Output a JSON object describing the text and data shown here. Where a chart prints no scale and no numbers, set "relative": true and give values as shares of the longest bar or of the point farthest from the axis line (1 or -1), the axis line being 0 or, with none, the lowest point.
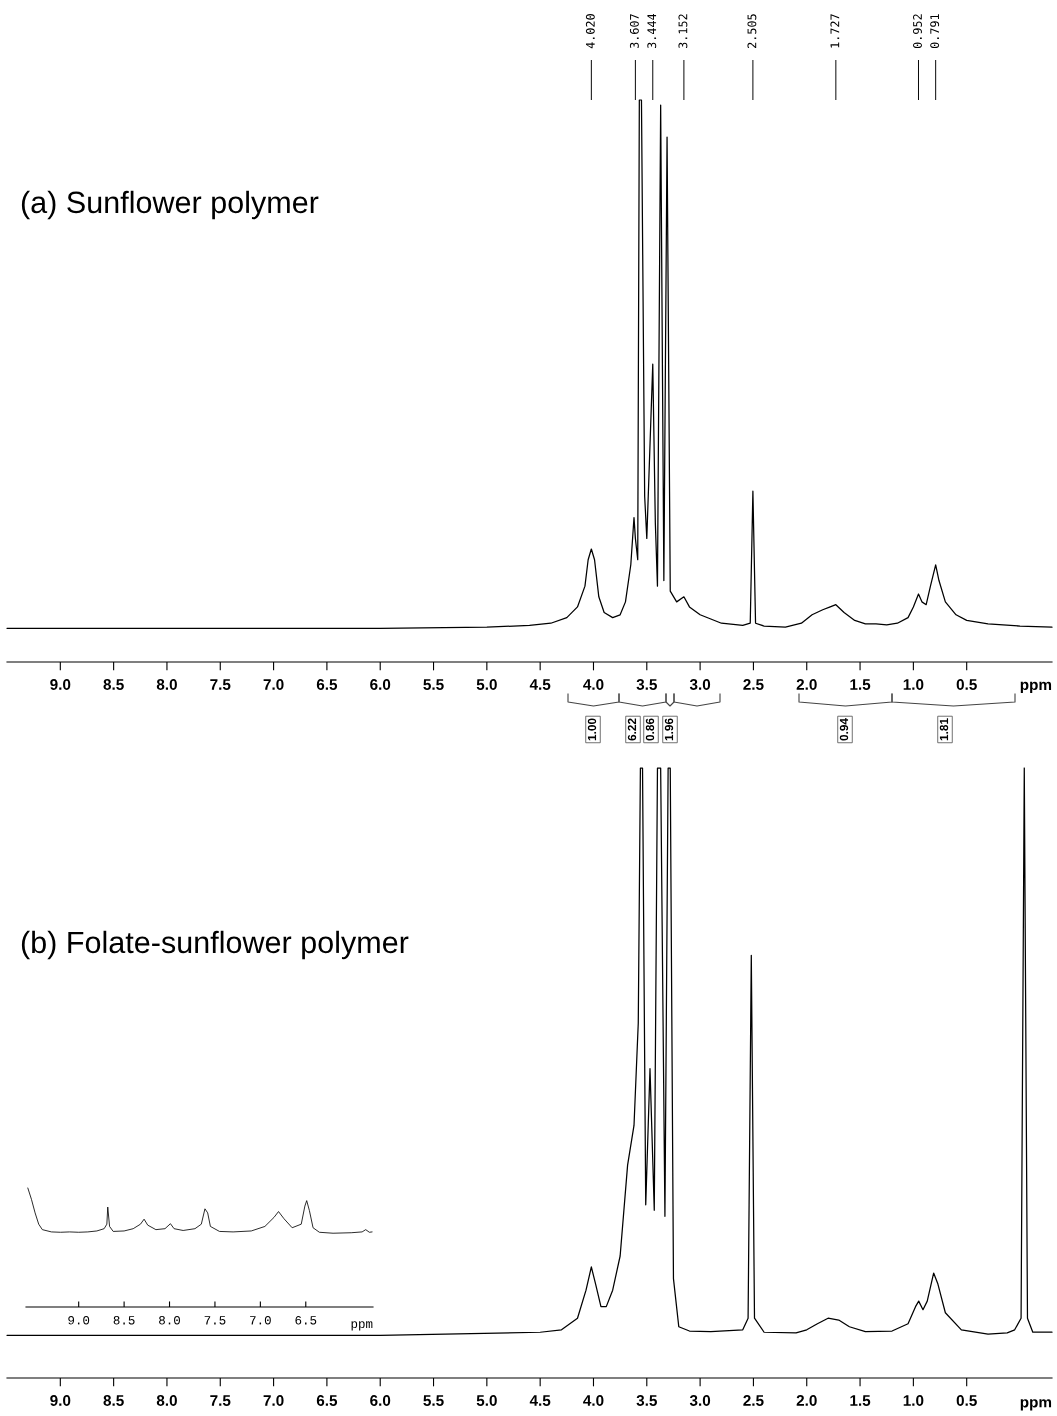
{
  "chart_data": [
    {
      "type": "line",
      "title": "(a) Sunflower polymer",
      "xlabel": "ppm",
      "relative": true,
      "tick_labels": "x",
      "xlim": [
        9.5,
        -0.3
      ],
      "xticks": [
        {
          "value": 9,
          "label": "9.0"
        },
        8.5,
        {
          "value": 8,
          "label": "8.0"
        },
        7.5,
        {
          "value": 7,
          "label": "7.0"
        },
        6.5,
        {
          "value": 6,
          "label": "6.0"
        },
        5.5,
        {
          "value": 5,
          "label": "5.0"
        },
        4.5,
        {
          "value": 4,
          "label": "4.0"
        },
        3.5,
        {
          "value": 3,
          "label": "3.0"
        },
        2.5,
        {
          "value": 2,
          "label": "2.0"
        },
        1.5,
        {
          "value": 1,
          "label": "1.0"
        },
        0.5
      ],
      "x2lim": [
        9.5,
        -0.3
      ],
      "x2ticks": [
        {
          "value": 4.02,
          "label": "4.020"
        },
        {
          "value": 3.607,
          "label": "3.607"
        },
        {
          "value": 3.444,
          "label": "3.444"
        },
        {
          "value": 3.152,
          "label": "3.152"
        },
        {
          "value": 2.505,
          "label": "2.505"
        },
        {
          "value": 1.727,
          "label": "1.727"
        },
        {
          "value": 0.952,
          "label": "0.952"
        },
        {
          "value": 0.791,
          "label": "0.791"
        }
      ],
      "series": [
        {
          "color": "#000000",
          "x": [
            9.5,
            8.0,
            6.0,
            5.0,
            4.6,
            4.4,
            4.25,
            4.15,
            4.08,
            4.05,
            4.02,
            3.99,
            3.95,
            3.9,
            3.82,
            3.75,
            3.7,
            3.65,
            3.62,
            3.607,
            3.585,
            3.57,
            3.55,
            3.52,
            3.5,
            3.444,
            3.42,
            3.4,
            3.37,
            3.34,
            3.31,
            3.28,
            3.22,
            3.152,
            3.1,
            3.0,
            2.8,
            2.6,
            2.53,
            2.505,
            2.48,
            2.4,
            2.2,
            2.05,
            1.95,
            1.85,
            1.78,
            1.727,
            1.65,
            1.55,
            1.45,
            1.35,
            1.25,
            1.15,
            1.05,
            1.0,
            0.952,
            0.92,
            0.88,
            0.84,
            0.791,
            0.76,
            0.7,
            0.6,
            0.5,
            0.3,
            0.0,
            -0.3
          ],
          "values": [
            0.06,
            0.06,
            0.06,
            0.062,
            0.065,
            0.069,
            0.079,
            0.098,
            0.135,
            0.182,
            0.201,
            0.182,
            0.116,
            0.088,
            0.079,
            0.084,
            0.107,
            0.173,
            0.257,
            0.22,
            0.182,
            1.0,
            1.0,
            0.295,
            0.22,
            0.53,
            0.248,
            0.135,
            0.991,
            0.145,
            0.934,
            0.126,
            0.107,
            0.116,
            0.098,
            0.084,
            0.069,
            0.065,
            0.069,
            0.304,
            0.069,
            0.064,
            0.062,
            0.069,
            0.084,
            0.093,
            0.098,
            0.102,
            0.088,
            0.074,
            0.068,
            0.068,
            0.066,
            0.069,
            0.079,
            0.098,
            0.121,
            0.107,
            0.102,
            0.135,
            0.173,
            0.145,
            0.107,
            0.084,
            0.074,
            0.068,
            0.064,
            0.062
          ]
        }
      ]
    },
    {
      "type": "line",
      "title": "(b) Folate-sunflower polymer",
      "xlabel": "ppm",
      "relative": true,
      "tick_labels": "x",
      "xlim": [
        9.5,
        -0.3
      ],
      "xticks": [
        {
          "value": 9,
          "label": "9.0"
        },
        8.5,
        {
          "value": 8,
          "label": "8.0"
        },
        7.5,
        {
          "value": 7,
          "label": "7.0"
        },
        6.5,
        {
          "value": 6,
          "label": "6.0"
        },
        5.5,
        {
          "value": 5,
          "label": "5.0"
        },
        4.5,
        {
          "value": 4,
          "label": "4.0"
        },
        3.5,
        {
          "value": 3,
          "label": "3.0"
        },
        2.5,
        {
          "value": 2,
          "label": "2.0"
        },
        1.5,
        {
          "value": 1,
          "label": "1.0"
        },
        0.5
      ],
      "annotations": [
        "1.00",
        "6.22",
        "0.86",
        "1.96",
        "0.94",
        "1.81"
      ],
      "series": [
        {
          "color": "#000000",
          "x": [
            9.5,
            8.0,
            6.0,
            4.5,
            4.3,
            4.15,
            4.07,
            4.02,
            3.98,
            3.93,
            3.88,
            3.82,
            3.75,
            3.68,
            3.62,
            3.58,
            3.56,
            3.54,
            3.51,
            3.47,
            3.43,
            3.4,
            3.37,
            3.33,
            3.3,
            3.28,
            3.25,
            3.2,
            3.1,
            2.9,
            2.6,
            2.55,
            2.52,
            2.49,
            2.4,
            2.1,
            2.0,
            1.9,
            1.8,
            1.7,
            1.6,
            1.45,
            1.2,
            1.05,
            0.98,
            0.95,
            0.91,
            0.87,
            0.81,
            0.77,
            0.7,
            0.55,
            0.3,
            0.12,
            0.05,
            -0.01,
            -0.04,
            -0.07,
            -0.12,
            -0.3
          ],
          "values": [
            0.07,
            0.07,
            0.07,
            0.075,
            0.079,
            0.098,
            0.144,
            0.182,
            0.154,
            0.117,
            0.117,
            0.144,
            0.2,
            0.349,
            0.414,
            0.582,
            1.0,
            1.0,
            0.284,
            0.507,
            0.275,
            1.0,
            1.0,
            0.265,
            1.0,
            1.0,
            0.163,
            0.084,
            0.077,
            0.076,
            0.079,
            0.098,
            0.693,
            0.098,
            0.075,
            0.074,
            0.079,
            0.089,
            0.098,
            0.095,
            0.084,
            0.076,
            0.077,
            0.089,
            0.117,
            0.126,
            0.112,
            0.126,
            0.172,
            0.154,
            0.107,
            0.079,
            0.072,
            0.074,
            0.079,
            0.098,
            1.0,
            0.098,
            0.075,
            0.075
          ]
        }
      ]
    },
    {
      "type": "line",
      "xlabel": "ppm",
      "relative": true,
      "tick_labels": "x",
      "xlim": [
        9.58,
        5.76
      ],
      "xticks": [
        {
          "value": 9,
          "label": "9.0"
        },
        8.5,
        {
          "value": 8,
          "label": "8.0"
        },
        7.5,
        {
          "value": 7,
          "label": "7.0"
        },
        6.5
      ],
      "series": [
        {
          "color": "#000000",
          "x": [
            9.56,
            9.52,
            9.48,
            9.44,
            9.4,
            9.3,
            9.2,
            9.1,
            9.0,
            8.9,
            8.8,
            8.72,
            8.69,
            8.68,
            8.66,
            8.62,
            8.5,
            8.4,
            8.32,
            8.28,
            8.24,
            8.15,
            8.05,
            7.99,
            7.95,
            7.85,
            7.72,
            7.65,
            7.61,
            7.58,
            7.55,
            7.45,
            7.3,
            7.1,
            6.95,
            6.85,
            6.8,
            6.74,
            6.65,
            6.55,
            6.51,
            6.49,
            6.46,
            6.42,
            6.35,
            6.2,
            6.0,
            5.88,
            5.84,
            5.8,
            5.77
          ],
          "values": [
            1.0,
            0.905,
            0.791,
            0.696,
            0.65,
            0.631,
            0.628,
            0.631,
            0.628,
            0.631,
            0.639,
            0.658,
            0.696,
            0.84,
            0.677,
            0.635,
            0.639,
            0.658,
            0.696,
            0.738,
            0.688,
            0.65,
            0.658,
            0.7,
            0.658,
            0.643,
            0.658,
            0.696,
            0.825,
            0.791,
            0.677,
            0.635,
            0.631,
            0.639,
            0.677,
            0.753,
            0.802,
            0.742,
            0.666,
            0.696,
            0.848,
            0.894,
            0.81,
            0.666,
            0.628,
            0.62,
            0.624,
            0.631,
            0.65,
            0.628,
            0.631
          ]
        }
      ]
    }
  ]
}
